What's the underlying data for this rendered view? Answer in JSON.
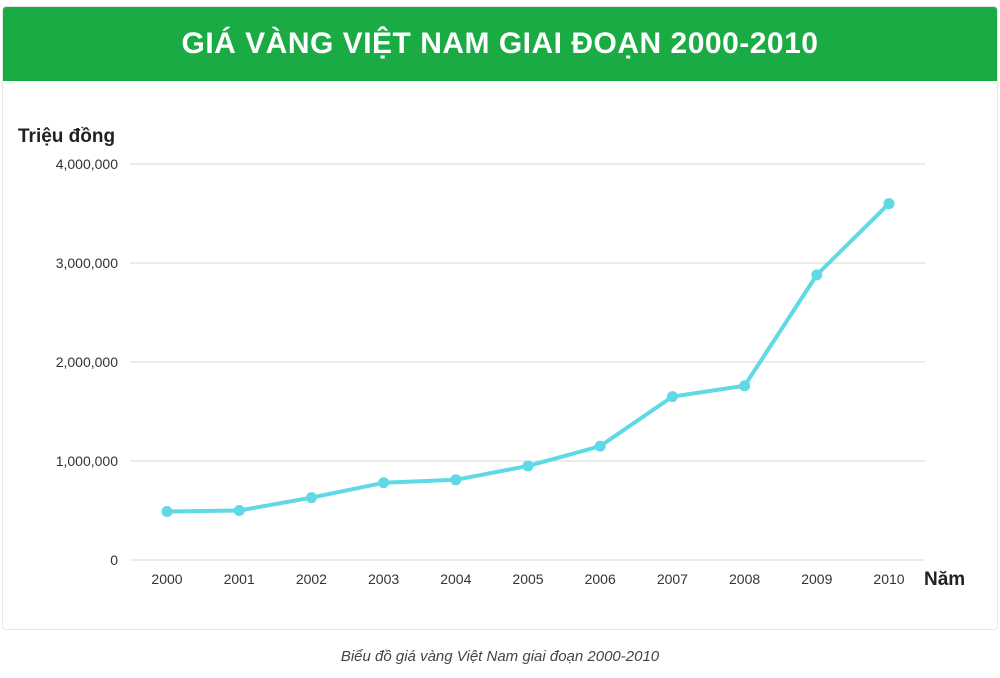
{
  "chart_data": {
    "type": "line",
    "title": "GIÁ VÀNG VIỆT NAM GIAI ĐOẠN 2000-2010",
    "ylabel": "Triệu đồng",
    "xlabel": "Năm",
    "categories": [
      "2000",
      "2001",
      "2002",
      "2003",
      "2004",
      "2005",
      "2006",
      "2007",
      "2008",
      "2009",
      "2010"
    ],
    "series": [
      {
        "values": [
          490000,
          500000,
          630000,
          780000,
          810000,
          950000,
          1150000,
          1650000,
          1760000,
          2880000,
          3600000
        ]
      }
    ],
    "ylim": [
      0,
      4000000
    ],
    "yticks": [
      0,
      1000000,
      2000000,
      3000000,
      4000000
    ],
    "ytick_labels": [
      "0",
      "1,000,000",
      "2,000,000",
      "3,000,000",
      "4,000,000"
    ],
    "grid": true,
    "legend": "none",
    "caption": "Biểu đồ giá vàng Việt Nam giai đoạn 2000-2010"
  },
  "colors": {
    "banner": "#1aab45",
    "line": "#5fd9e6",
    "grid": "#d9d9d9",
    "text": "#222222"
  }
}
